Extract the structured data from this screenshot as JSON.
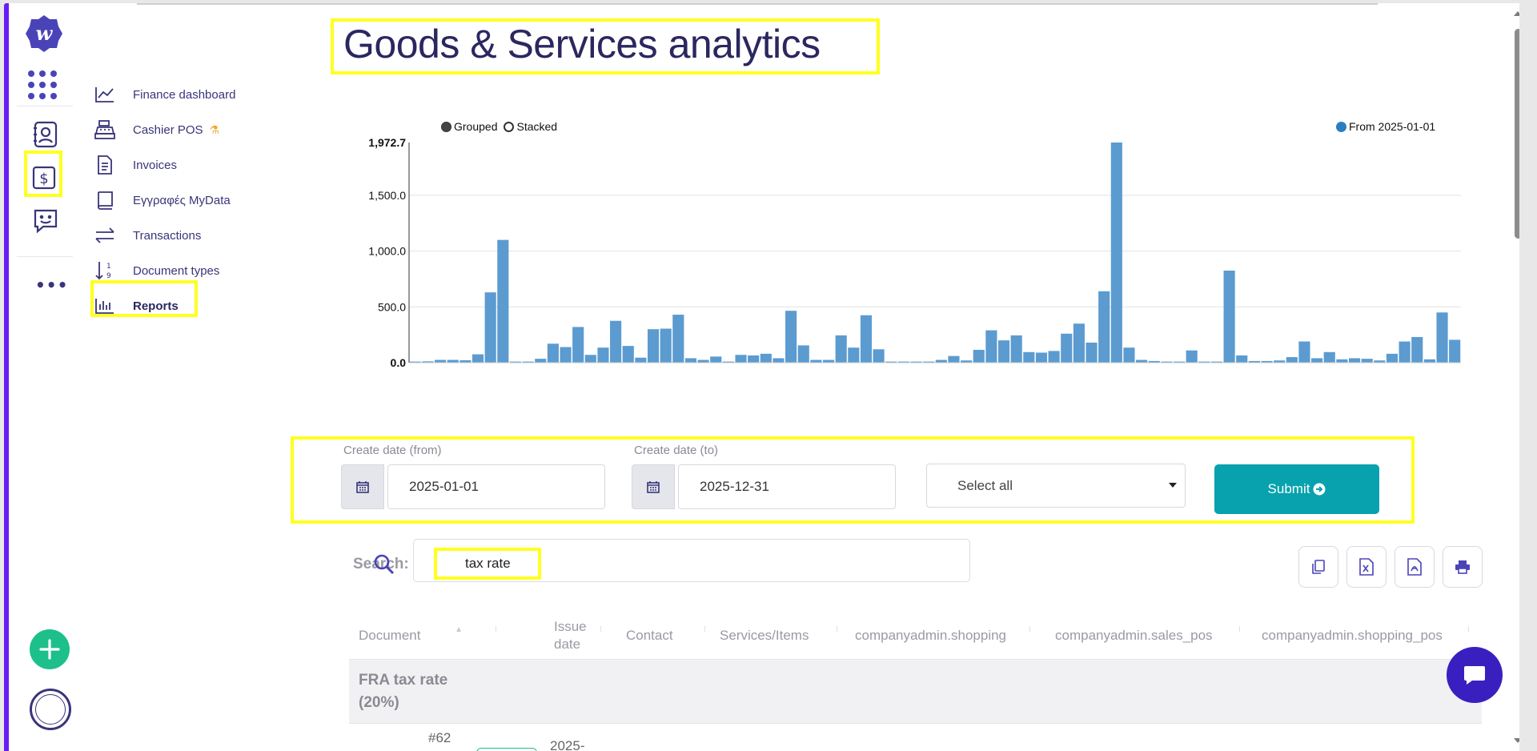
{
  "page": {
    "title": "Goods & Services analytics"
  },
  "nav": {
    "items": [
      {
        "label": "Finance dashboard",
        "icon": "chart-line-icon"
      },
      {
        "label": "Cashier POS",
        "icon": "cash-register-icon",
        "badge_icon": "flask-icon"
      },
      {
        "label": "Invoices",
        "icon": "document-icon"
      },
      {
        "label": "Εγγραφές MyData",
        "icon": "book-icon"
      },
      {
        "label": "Transactions",
        "icon": "transfer-arrows-icon"
      },
      {
        "label": "Document types",
        "icon": "sort-numeric-icon"
      },
      {
        "label": "Reports",
        "icon": "bar-chart-icon",
        "active": true
      }
    ],
    "rail": [
      "logo-icon",
      "apps-grid-icon",
      "contacts-icon",
      "finance-dollar-icon",
      "chat-smile-icon",
      "more-icon"
    ]
  },
  "chart_legend": {
    "grouped": "Grouped",
    "stacked": "Stacked",
    "series": "From 2025-01-01",
    "selected_mode": "Grouped"
  },
  "chart_data": {
    "type": "bar",
    "series": [
      {
        "name": "From 2025-01-01",
        "color": "#5b9bd0",
        "values": [
          10,
          12,
          25,
          25,
          22,
          75,
          630,
          1100,
          10,
          10,
          35,
          170,
          140,
          320,
          70,
          135,
          375,
          150,
          45,
          300,
          305,
          430,
          40,
          25,
          55,
          10,
          70,
          65,
          80,
          40,
          465,
          155,
          25,
          25,
          245,
          135,
          425,
          120,
          10,
          10,
          10,
          10,
          25,
          60,
          20,
          115,
          290,
          200,
          245,
          95,
          90,
          105,
          260,
          350,
          180,
          640,
          1972.7,
          135,
          25,
          15,
          10,
          10,
          110,
          10,
          10,
          825,
          65,
          15,
          15,
          20,
          50,
          190,
          40,
          95,
          30,
          40,
          35,
          20,
          80,
          190,
          230,
          30,
          450,
          205
        ]
      }
    ],
    "y_ticks": [
      "0.0",
      "500.0",
      "1,000.0",
      "1,500.0",
      "1,972.7"
    ],
    "ylim": [
      0,
      1972.7
    ],
    "grid": true,
    "legend_position": "top-right"
  },
  "filters": {
    "from_label": "Create date (from)",
    "from_value": "2025-01-01",
    "to_label": "Create date (to)",
    "to_value": "2025-12-31",
    "select_value": "Select all",
    "submit_label": "Submit"
  },
  "search": {
    "label": "Search:",
    "value": "tax rate"
  },
  "table": {
    "columns": [
      "Document",
      "",
      "Issue date",
      "Contact",
      "Services/Items",
      "companyadmin.shopping",
      "companyadmin.sales_pos",
      "companyadmin.shopping_pos"
    ],
    "group_label": "FRA tax rate (20%)",
    "partial_row": {
      "doc_number": "#62",
      "date": "2025-"
    }
  },
  "colors": {
    "accent": "#6a1df5",
    "title": "#2a2760",
    "submit": "#07a2ad",
    "add": "#1dc08a",
    "chat": "#3a1fc0",
    "bar": "#5b9bd0"
  }
}
